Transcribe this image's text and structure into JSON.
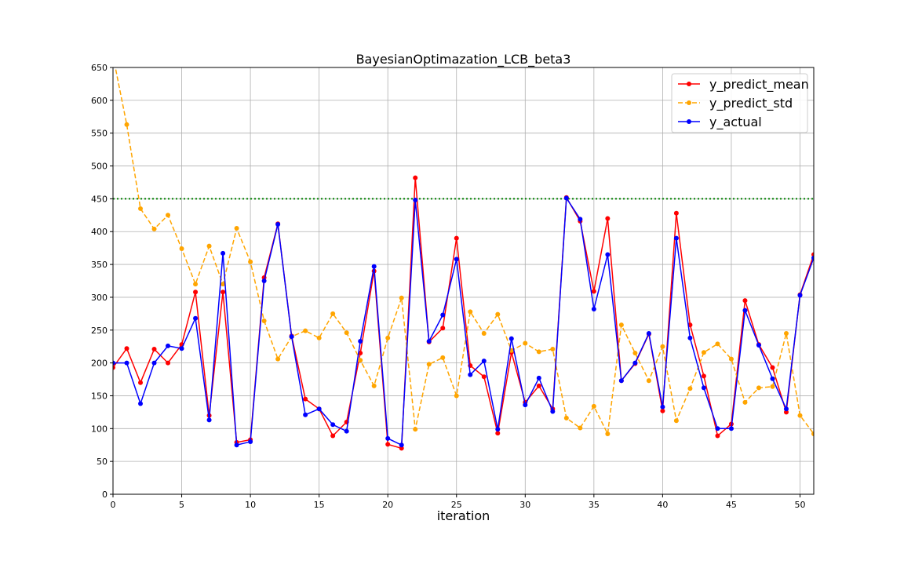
{
  "chart_data": {
    "type": "line",
    "title": "BayesianOptimazation_LCB_beta3",
    "xlabel": "iteration",
    "ylabel": "",
    "xlim": [
      0,
      51
    ],
    "ylim": [
      0,
      650
    ],
    "xticks": [
      0,
      5,
      10,
      15,
      20,
      25,
      30,
      35,
      40,
      45,
      50
    ],
    "xtick_labels": [
      "0",
      "5",
      "10",
      "15",
      "20",
      "25",
      "30",
      "35",
      "40",
      "45",
      "50"
    ],
    "yticks": [
      0,
      50,
      100,
      150,
      200,
      250,
      300,
      350,
      400,
      450,
      500,
      550,
      600,
      650
    ],
    "ytick_labels": [
      "0",
      "50",
      "100",
      "150",
      "200",
      "250",
      "300",
      "350",
      "400",
      "450",
      "500",
      "550",
      "600",
      "650"
    ],
    "grid": true,
    "legend_position": "upper right",
    "hline": {
      "y": 450,
      "color": "#008000",
      "style": "dotted"
    },
    "x": [
      0,
      1,
      2,
      3,
      4,
      5,
      6,
      7,
      8,
      9,
      10,
      11,
      12,
      13,
      14,
      15,
      16,
      17,
      18,
      19,
      20,
      21,
      22,
      23,
      24,
      25,
      26,
      27,
      28,
      29,
      30,
      31,
      32,
      33,
      34,
      35,
      36,
      37,
      38,
      39,
      40,
      41,
      42,
      43,
      44,
      45,
      46,
      47,
      48,
      49,
      50,
      51
    ],
    "series": [
      {
        "name": "y_predict_mean",
        "color": "#ff0000",
        "style": "solid",
        "values": [
          193,
          222,
          170,
          221,
          200,
          228,
          308,
          120,
          308,
          79,
          83,
          330,
          412,
          241,
          145,
          130,
          89,
          110,
          215,
          340,
          76,
          70,
          482,
          232,
          253,
          390,
          196,
          179,
          93,
          216,
          140,
          165,
          130,
          452,
          416,
          309,
          420,
          173,
          199,
          244,
          127,
          428,
          258,
          180,
          89,
          107,
          295,
          228,
          193,
          125,
          304,
          365
        ]
      },
      {
        "name": "y_predict_std",
        "color": "#ffa500",
        "style": "dashed",
        "values": [
          668,
          563,
          435,
          404,
          425,
          374,
          320,
          378,
          320,
          405,
          354,
          264,
          206,
          240,
          249,
          238,
          275,
          246,
          204,
          165,
          238,
          299,
          99,
          198,
          208,
          150,
          278,
          245,
          274,
          219,
          230,
          217,
          221,
          116,
          101,
          134,
          92,
          258,
          215,
          173,
          225,
          112,
          161,
          216,
          229,
          206,
          140,
          162,
          164,
          245,
          120,
          92
        ]
      },
      {
        "name": "y_actual",
        "color": "#0000ff",
        "style": "solid",
        "values": [
          200,
          200,
          138,
          200,
          226,
          222,
          268,
          113,
          367,
          75,
          80,
          325,
          411,
          240,
          121,
          130,
          106,
          96,
          233,
          347,
          85,
          75,
          448,
          233,
          273,
          358,
          182,
          203,
          99,
          237,
          136,
          177,
          126,
          451,
          419,
          282,
          365,
          173,
          200,
          245,
          133,
          390,
          238,
          162,
          100,
          100,
          280,
          227,
          176,
          130,
          303,
          360
        ]
      }
    ]
  }
}
